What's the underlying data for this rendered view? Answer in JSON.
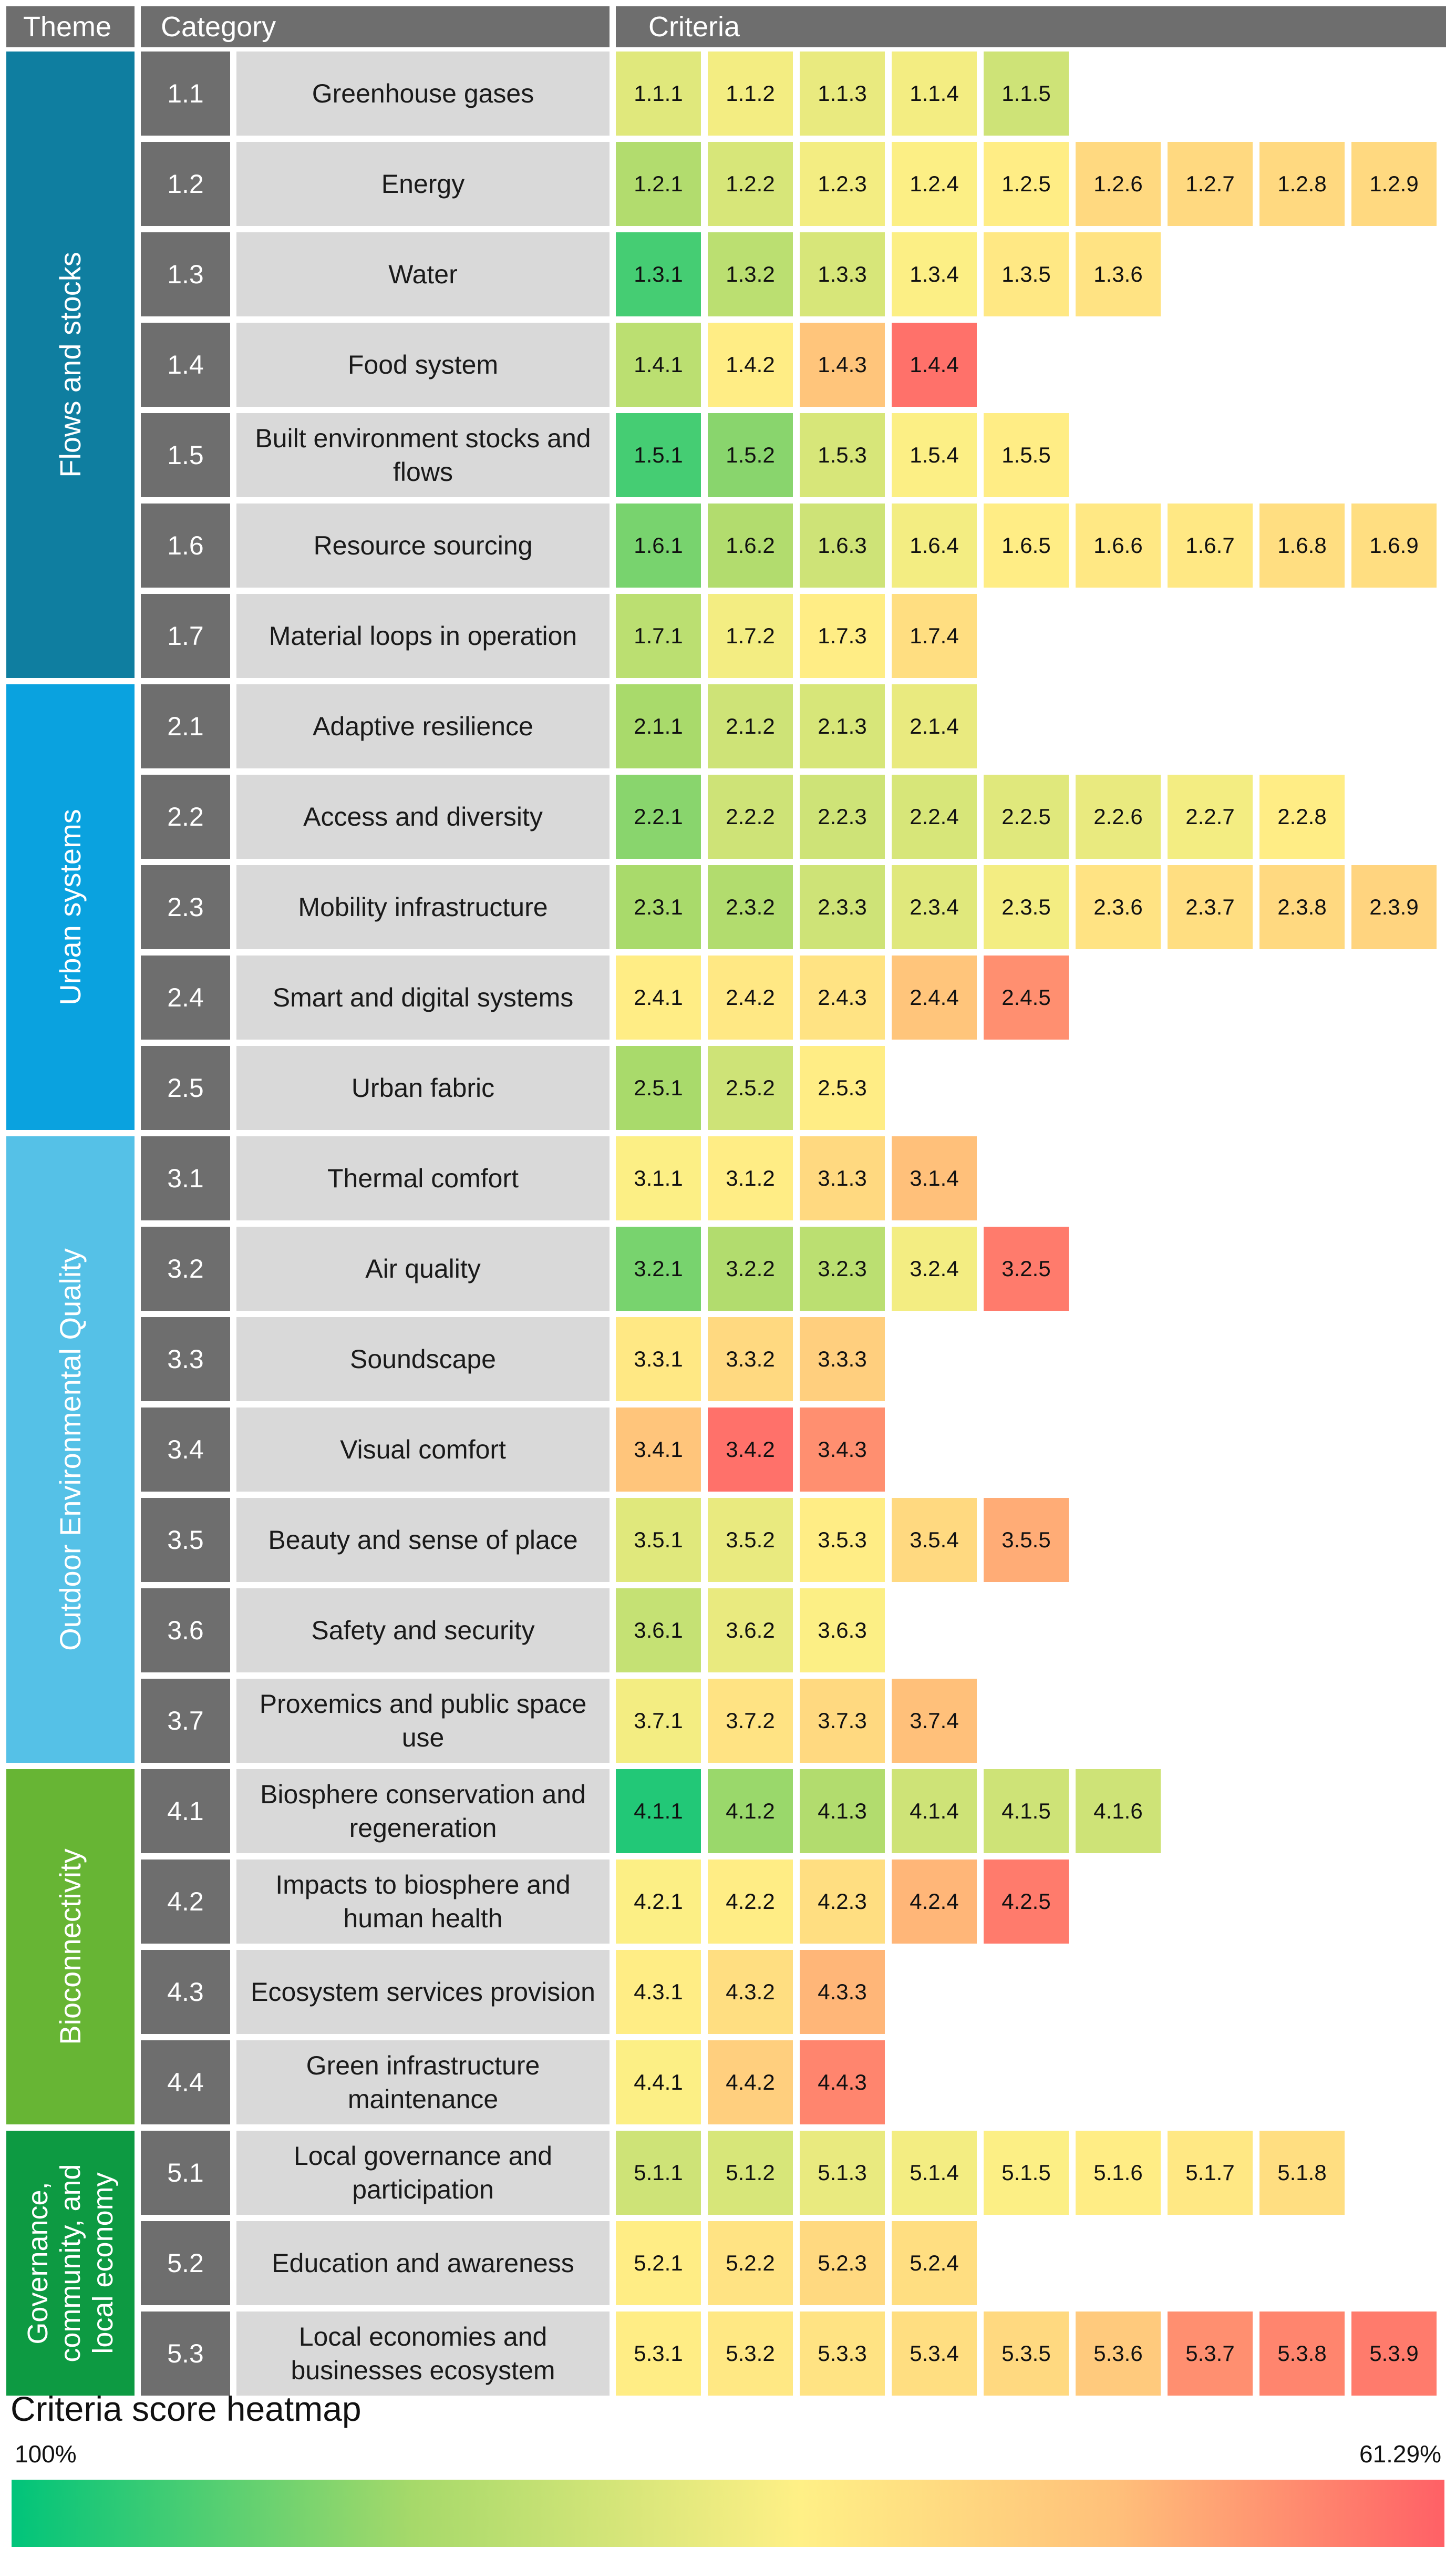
{
  "headers": {
    "theme": "Theme",
    "category": "Category",
    "criteria": "Criteria"
  },
  "themes": [
    {
      "name": "Flows and stocks",
      "color": "#0f7ea0",
      "rows": [
        0,
        6
      ]
    },
    {
      "name": "Urban systems",
      "color": "#0aa2df",
      "rows": [
        7,
        11
      ]
    },
    {
      "name": "Outdoor Environmental Quality",
      "color": "#55c1e7",
      "rows": [
        12,
        18
      ]
    },
    {
      "name": "Bioconnectivity",
      "color": "#67b534",
      "rows": [
        19,
        22
      ]
    },
    {
      "name": "Governance, community, and local economy",
      "color": "#0d9a42",
      "rows": [
        23,
        25
      ]
    }
  ],
  "categories": [
    {
      "id": "1.1",
      "name": "Greenhouse gases"
    },
    {
      "id": "1.2",
      "name": "Energy"
    },
    {
      "id": "1.3",
      "name": "Water"
    },
    {
      "id": "1.4",
      "name": "Food system"
    },
    {
      "id": "1.5",
      "name": "Built environment stocks and flows"
    },
    {
      "id": "1.6",
      "name": "Resource sourcing"
    },
    {
      "id": "1.7",
      "name": "Material loops in operation"
    },
    {
      "id": "2.1",
      "name": "Adaptive resilience"
    },
    {
      "id": "2.2",
      "name": "Access and diversity"
    },
    {
      "id": "2.3",
      "name": "Mobility infrastructure"
    },
    {
      "id": "2.4",
      "name": "Smart and digital systems"
    },
    {
      "id": "2.5",
      "name": "Urban fabric"
    },
    {
      "id": "3.1",
      "name": "Thermal comfort"
    },
    {
      "id": "3.2",
      "name": "Air quality"
    },
    {
      "id": "3.3",
      "name": "Soundscape"
    },
    {
      "id": "3.4",
      "name": "Visual comfort"
    },
    {
      "id": "3.5",
      "name": "Beauty and sense of place"
    },
    {
      "id": "3.6",
      "name": "Safety and security"
    },
    {
      "id": "3.7",
      "name": "Proxemics and public space use"
    },
    {
      "id": "4.1",
      "name": "Biosphere conservation and regeneration"
    },
    {
      "id": "4.2",
      "name": "Impacts to biosphere and human health"
    },
    {
      "id": "4.3",
      "name": "Ecosystem services provision"
    },
    {
      "id": "4.4",
      "name": "Green infrastructure maintenance"
    },
    {
      "id": "5.1",
      "name": "Local governance and participation"
    },
    {
      "id": "5.2",
      "name": "Education and awareness"
    },
    {
      "id": "5.3",
      "name": "Local economies and businesses ecosystem"
    }
  ],
  "chart_data": {
    "type": "heatmap",
    "title": "Criteria score heatmap",
    "scale": {
      "max_label": "100%",
      "min_label": "61.29%",
      "max": 100,
      "min": 61.29
    },
    "palette": [
      "#00c47a",
      "#a6d96a",
      "#fff086",
      "#ffc07a",
      "#ff6066"
    ],
    "rows": [
      {
        "category": "1.1",
        "criteria": [
          "1.1.1",
          "1.1.2",
          "1.1.3",
          "1.1.4",
          "1.1.5"
        ],
        "scores": [
          84,
          82,
          83,
          82,
          86
        ]
      },
      {
        "category": "1.2",
        "criteria": [
          "1.2.1",
          "1.2.2",
          "1.2.3",
          "1.2.4",
          "1.2.5",
          "1.2.6",
          "1.2.7",
          "1.2.8",
          "1.2.9"
        ],
        "scores": [
          89,
          85,
          82,
          81,
          80,
          76,
          76,
          76,
          76
        ]
      },
      {
        "category": "1.3",
        "criteria": [
          "1.3.1",
          "1.3.2",
          "1.3.3",
          "1.3.4",
          "1.3.5",
          "1.3.6"
        ],
        "scores": [
          96,
          88,
          85,
          81,
          79,
          78
        ]
      },
      {
        "category": "1.4",
        "criteria": [
          "1.4.1",
          "1.4.2",
          "1.4.3",
          "1.4.4"
        ],
        "scores": [
          88,
          80,
          72,
          63
        ]
      },
      {
        "category": "1.5",
        "criteria": [
          "1.5.1",
          "1.5.2",
          "1.5.3",
          "1.5.4",
          "1.5.5"
        ],
        "scores": [
          96,
          92,
          85,
          81,
          80
        ]
      },
      {
        "category": "1.6",
        "criteria": [
          "1.6.1",
          "1.6.2",
          "1.6.3",
          "1.6.4",
          "1.6.5",
          "1.6.6",
          "1.6.7",
          "1.6.8",
          "1.6.9"
        ],
        "scores": [
          93,
          89,
          86,
          82,
          80,
          79,
          79,
          77,
          77
        ]
      },
      {
        "category": "1.7",
        "criteria": [
          "1.7.1",
          "1.7.2",
          "1.7.3",
          "1.7.4"
        ],
        "scores": [
          88,
          82,
          80,
          77
        ]
      },
      {
        "category": "2.1",
        "criteria": [
          "2.1.1",
          "2.1.2",
          "2.1.3",
          "2.1.4"
        ],
        "scores": [
          90,
          86,
          85,
          83
        ]
      },
      {
        "category": "2.2",
        "criteria": [
          "2.2.1",
          "2.2.2",
          "2.2.3",
          "2.2.4",
          "2.2.5",
          "2.2.6",
          "2.2.7",
          "2.2.8"
        ],
        "scores": [
          92,
          86,
          86,
          85,
          84,
          83,
          82,
          80
        ]
      },
      {
        "category": "2.3",
        "criteria": [
          "2.3.1",
          "2.3.2",
          "2.3.3",
          "2.3.4",
          "2.3.5",
          "2.3.6",
          "2.3.7",
          "2.3.8",
          "2.3.9"
        ],
        "scores": [
          90,
          89,
          86,
          84,
          82,
          78,
          77,
          76,
          75
        ]
      },
      {
        "category": "2.4",
        "criteria": [
          "2.4.1",
          "2.4.2",
          "2.4.3",
          "2.4.4",
          "2.4.5"
        ],
        "scores": [
          80,
          79,
          78,
          72,
          66
        ]
      },
      {
        "category": "2.5",
        "criteria": [
          "2.5.1",
          "2.5.2",
          "2.5.3"
        ],
        "scores": [
          90,
          86,
          80
        ]
      },
      {
        "category": "3.1",
        "criteria": [
          "3.1.1",
          "3.1.2",
          "3.1.3",
          "3.1.4"
        ],
        "scores": [
          81,
          80,
          76,
          71
        ]
      },
      {
        "category": "3.2",
        "criteria": [
          "3.2.1",
          "3.2.2",
          "3.2.3",
          "3.2.4",
          "3.2.5"
        ],
        "scores": [
          93,
          89,
          88,
          82,
          64
        ]
      },
      {
        "category": "3.3",
        "criteria": [
          "3.3.1",
          "3.3.2",
          "3.3.3"
        ],
        "scores": [
          79,
          76,
          74
        ]
      },
      {
        "category": "3.4",
        "criteria": [
          "3.4.1",
          "3.4.2",
          "3.4.3"
        ],
        "scores": [
          72,
          63,
          66
        ]
      },
      {
        "category": "3.5",
        "criteria": [
          "3.5.1",
          "3.5.2",
          "3.5.3",
          "3.5.4",
          "3.5.5"
        ],
        "scores": [
          84,
          83,
          80,
          76,
          69
        ]
      },
      {
        "category": "3.6",
        "criteria": [
          "3.6.1",
          "3.6.2",
          "3.6.3"
        ],
        "scores": [
          87,
          83,
          81
        ]
      },
      {
        "category": "3.7",
        "criteria": [
          "3.7.1",
          "3.7.2",
          "3.7.3",
          "3.7.4"
        ],
        "scores": [
          82,
          78,
          76,
          71
        ]
      },
      {
        "category": "4.1",
        "criteria": [
          "4.1.1",
          "4.1.2",
          "4.1.3",
          "4.1.4",
          "4.1.5",
          "4.1.6"
        ],
        "scores": [
          98,
          91,
          89,
          86,
          86,
          86
        ]
      },
      {
        "category": "4.2",
        "criteria": [
          "4.2.1",
          "4.2.2",
          "4.2.3",
          "4.2.4",
          "4.2.5"
        ],
        "scores": [
          81,
          80,
          77,
          70,
          64
        ]
      },
      {
        "category": "4.3",
        "criteria": [
          "4.3.1",
          "4.3.2",
          "4.3.3"
        ],
        "scores": [
          80,
          77,
          70
        ]
      },
      {
        "category": "4.4",
        "criteria": [
          "4.4.1",
          "4.4.2",
          "4.4.3"
        ],
        "scores": [
          81,
          74,
          65
        ]
      },
      {
        "category": "5.1",
        "criteria": [
          "5.1.1",
          "5.1.2",
          "5.1.3",
          "5.1.4",
          "5.1.5",
          "5.1.6",
          "5.1.7",
          "5.1.8"
        ],
        "scores": [
          86,
          85,
          83,
          82,
          81,
          80,
          79,
          77
        ]
      },
      {
        "category": "5.2",
        "criteria": [
          "5.2.1",
          "5.2.2",
          "5.2.3",
          "5.2.4"
        ],
        "scores": [
          80,
          78,
          76,
          77
        ]
      },
      {
        "category": "5.3",
        "criteria": [
          "5.3.1",
          "5.3.2",
          "5.3.3",
          "5.3.4",
          "5.3.5",
          "5.3.6",
          "5.3.7",
          "5.3.8",
          "5.3.9"
        ],
        "scores": [
          80,
          79,
          78,
          77,
          76,
          73,
          66,
          65,
          64
        ]
      }
    ]
  }
}
